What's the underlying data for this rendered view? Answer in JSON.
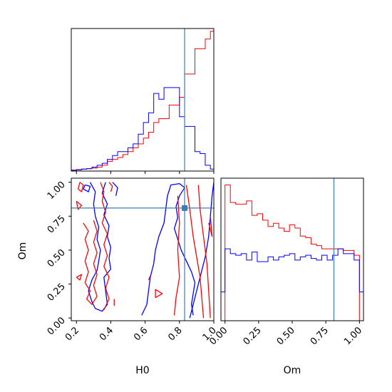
{
  "chart_data": [
    {
      "type": "histogram",
      "panel": "H0 marginal",
      "x_range": [
        0.17,
        1.0
      ],
      "show_y_ticks": false,
      "truth_x": 0.83,
      "series": [
        {
          "color": "#ff0000",
          "bin_edges": [
            0.17,
            0.2,
            0.23,
            0.26,
            0.29,
            0.32,
            0.35,
            0.38,
            0.41,
            0.44,
            0.47,
            0.5,
            0.53,
            0.56,
            0.59,
            0.62,
            0.65,
            0.68,
            0.71,
            0.74,
            0.77,
            0.8,
            0.83,
            0.86,
            0.89,
            0.92,
            0.95,
            0.98,
            1.0
          ],
          "heights": [
            0.005,
            0.008,
            0.01,
            0.012,
            0.015,
            0.02,
            0.03,
            0.05,
            0.06,
            0.07,
            0.085,
            0.1,
            0.12,
            0.14,
            0.17,
            0.2,
            0.25,
            0.27,
            0.27,
            0.34,
            0.34,
            0.38,
            0.5,
            0.5,
            0.63,
            0.63,
            0.68,
            0.72
          ]
        },
        {
          "color": "#0000ff",
          "bin_edges": [
            0.17,
            0.2,
            0.23,
            0.26,
            0.29,
            0.32,
            0.35,
            0.38,
            0.41,
            0.44,
            0.47,
            0.5,
            0.53,
            0.56,
            0.59,
            0.62,
            0.65,
            0.68,
            0.71,
            0.74,
            0.77,
            0.8,
            0.83,
            0.86,
            0.89,
            0.92,
            0.95,
            0.98,
            1.0
          ],
          "heights": [
            0.004,
            0.006,
            0.01,
            0.013,
            0.02,
            0.03,
            0.04,
            0.06,
            0.08,
            0.1,
            0.1,
            0.12,
            0.14,
            0.19,
            0.25,
            0.3,
            0.4,
            0.37,
            0.43,
            0.43,
            0.43,
            0.28,
            0.23,
            0.23,
            0.1,
            0.09,
            0.03,
            0.01
          ]
        }
      ]
    },
    {
      "type": "contour",
      "panel": "H0 vs Om",
      "xlabel": "H0",
      "ylabel": "Om",
      "xlim": [
        0.17,
        1.0
      ],
      "ylim": [
        -0.02,
        1.03
      ],
      "xticks": [
        "0.2",
        "0.4",
        "0.6",
        "0.8",
        "1.0"
      ],
      "yticks": [
        "0.00",
        "0.25",
        "0.50",
        "0.75",
        "1.00"
      ],
      "truth": {
        "x": 0.83,
        "y": 0.81
      },
      "series": [
        {
          "color": "#0000ff",
          "contours": [
            [
              [
                0.28,
                1.0
              ],
              [
                0.31,
                0.93
              ],
              [
                0.3,
                0.84
              ],
              [
                0.31,
                0.75
              ],
              [
                0.33,
                0.67
              ],
              [
                0.32,
                0.58
              ],
              [
                0.34,
                0.5
              ],
              [
                0.33,
                0.42
              ],
              [
                0.32,
                0.35
              ],
              [
                0.29,
                0.28
              ],
              [
                0.27,
                0.2
              ],
              [
                0.29,
                0.12
              ],
              [
                0.31,
                0.07
              ],
              [
                0.35,
                0.05
              ],
              [
                0.38,
                0.1
              ],
              [
                0.37,
                0.2
              ],
              [
                0.36,
                0.3
              ],
              [
                0.4,
                0.36
              ],
              [
                0.39,
                0.44
              ],
              [
                0.4,
                0.52
              ],
              [
                0.38,
                0.6
              ],
              [
                0.39,
                0.68
              ],
              [
                0.36,
                0.76
              ],
              [
                0.38,
                0.84
              ],
              [
                0.35,
                0.92
              ],
              [
                0.37,
                1.0
              ]
            ],
            [
              [
                0.25,
                0.98
              ],
              [
                0.28,
                0.97
              ],
              [
                0.27,
                0.93
              ],
              [
                0.24,
                0.95
              ],
              [
                0.25,
                0.98
              ]
            ],
            [
              [
                0.41,
                1.0
              ],
              [
                0.44,
                0.96
              ],
              [
                0.43,
                0.9
              ]
            ],
            [
              [
                0.58,
                0.02
              ],
              [
                0.61,
                0.1
              ],
              [
                0.62,
                0.2
              ],
              [
                0.63,
                0.3
              ],
              [
                0.65,
                0.4
              ],
              [
                0.66,
                0.5
              ],
              [
                0.68,
                0.6
              ],
              [
                0.71,
                0.7
              ],
              [
                0.72,
                0.8
              ],
              [
                0.73,
                0.9
              ],
              [
                0.75,
                0.98
              ],
              [
                0.8,
                0.99
              ],
              [
                0.83,
                0.96
              ],
              [
                0.8,
                0.9
              ],
              [
                0.78,
                0.82
              ],
              [
                0.79,
                0.74
              ],
              [
                0.77,
                0.66
              ],
              [
                0.79,
                0.58
              ],
              [
                0.81,
                0.5
              ],
              [
                0.84,
                0.42
              ],
              [
                0.87,
                0.34
              ],
              [
                0.89,
                0.26
              ],
              [
                0.88,
                0.18
              ],
              [
                0.87,
                0.1
              ],
              [
                0.88,
                0.02
              ]
            ],
            [
              [
                0.86,
                0.0
              ],
              [
                0.89,
                0.15
              ],
              [
                0.92,
                0.3
              ],
              [
                0.95,
                0.45
              ],
              [
                0.97,
                0.6
              ],
              [
                0.98,
                0.75
              ],
              [
                0.99,
                0.9
              ],
              [
                1.0,
                1.0
              ]
            ]
          ]
        },
        {
          "color": "#ff0000",
          "contours": [
            [
              [
                0.22,
                1.0
              ],
              [
                0.24,
                0.98
              ],
              [
                0.23,
                0.93
              ],
              [
                0.21,
                0.95
              ],
              [
                0.22,
                1.0
              ]
            ],
            [
              [
                0.2,
                0.86
              ],
              [
                0.23,
                0.83
              ],
              [
                0.21,
                0.8
              ],
              [
                0.2,
                0.86
              ]
            ],
            [
              [
                0.24,
                0.7
              ],
              [
                0.27,
                0.64
              ],
              [
                0.25,
                0.58
              ],
              [
                0.27,
                0.5
              ],
              [
                0.25,
                0.42
              ],
              [
                0.27,
                0.34
              ],
              [
                0.25,
                0.26
              ],
              [
                0.28,
                0.2
              ],
              [
                0.26,
                0.14
              ],
              [
                0.29,
                0.1
              ],
              [
                0.32,
                0.16
              ],
              [
                0.3,
                0.24
              ],
              [
                0.32,
                0.32
              ],
              [
                0.3,
                0.4
              ],
              [
                0.32,
                0.48
              ],
              [
                0.3,
                0.56
              ],
              [
                0.32,
                0.64
              ],
              [
                0.3,
                0.72
              ]
            ],
            [
              [
                0.34,
                1.0
              ],
              [
                0.36,
                0.93
              ],
              [
                0.35,
                0.86
              ],
              [
                0.37,
                0.78
              ],
              [
                0.35,
                0.7
              ],
              [
                0.38,
                0.62
              ],
              [
                0.36,
                0.54
              ],
              [
                0.38,
                0.46
              ],
              [
                0.36,
                0.38
              ],
              [
                0.39,
                0.3
              ],
              [
                0.37,
                0.22
              ],
              [
                0.39,
                0.14
              ],
              [
                0.36,
                0.06
              ]
            ],
            [
              [
                0.39,
                1.0
              ],
              [
                0.41,
                0.97
              ],
              [
                0.4,
                0.93
              ]
            ],
            [
              [
                0.2,
                0.3
              ],
              [
                0.23,
                0.32
              ],
              [
                0.22,
                0.28
              ],
              [
                0.2,
                0.3
              ]
            ],
            [
              [
                0.42,
                0.14
              ],
              [
                0.42,
                0.09
              ]
            ],
            [
              [
                0.79,
                0.9
              ],
              [
                0.8,
                0.7
              ],
              [
                0.79,
                0.5
              ],
              [
                0.8,
                0.3
              ],
              [
                0.78,
                0.15
              ],
              [
                0.77,
                0.02
              ]
            ],
            [
              [
                0.84,
                0.98
              ],
              [
                0.86,
                0.8
              ],
              [
                0.88,
                0.6
              ],
              [
                0.9,
                0.45
              ],
              [
                0.92,
                0.3
              ],
              [
                0.93,
                0.15
              ],
              [
                0.94,
                0.0
              ]
            ],
            [
              [
                0.91,
                0.98
              ],
              [
                0.92,
                0.8
              ],
              [
                0.94,
                0.6
              ],
              [
                0.96,
                0.4
              ],
              [
                0.97,
                0.2
              ],
              [
                0.98,
                0.0
              ]
            ],
            [
              [
                0.97,
                0.7
              ],
              [
                0.99,
                0.6
              ],
              [
                0.98,
                0.75
              ]
            ],
            [
              [
                0.66,
                0.15
              ],
              [
                0.7,
                0.18
              ],
              [
                0.66,
                0.21
              ],
              [
                0.66,
                0.15
              ]
            ],
            [
              [
                0.62,
                0.28
              ],
              [
                0.63,
                0.31
              ]
            ]
          ]
        }
      ]
    },
    {
      "type": "histogram",
      "panel": "Om marginal",
      "xlabel": "Om",
      "x_range": [
        -0.03,
        1.03
      ],
      "xticks": [
        "0.00",
        "0.25",
        "0.50",
        "0.75",
        "1.00"
      ],
      "show_y_ticks": false,
      "truth_x": 0.81,
      "series": [
        {
          "color": "#ff0000",
          "bin_edges": [
            -0.03,
            0.0,
            0.04,
            0.08,
            0.12,
            0.16,
            0.2,
            0.24,
            0.28,
            0.32,
            0.36,
            0.4,
            0.44,
            0.48,
            0.52,
            0.56,
            0.6,
            0.64,
            0.68,
            0.72,
            0.76,
            0.8,
            0.84,
            0.88,
            0.92,
            0.96,
            1.0,
            1.03
          ],
          "heights": [
            0.0,
            0.85,
            0.74,
            0.73,
            0.73,
            0.75,
            0.66,
            0.67,
            0.63,
            0.59,
            0.61,
            0.58,
            0.56,
            0.6,
            0.58,
            0.53,
            0.52,
            0.48,
            0.47,
            0.45,
            0.45,
            0.45,
            0.45,
            0.44,
            0.44,
            0.41,
            0.0
          ]
        },
        {
          "color": "#0000ff",
          "bin_edges": [
            -0.03,
            0.0,
            0.04,
            0.08,
            0.12,
            0.16,
            0.2,
            0.24,
            0.28,
            0.32,
            0.36,
            0.4,
            0.44,
            0.48,
            0.52,
            0.56,
            0.6,
            0.64,
            0.68,
            0.72,
            0.76,
            0.8,
            0.84,
            0.88,
            0.92,
            0.96,
            1.0,
            1.03
          ],
          "heights": [
            0.18,
            0.45,
            0.42,
            0.41,
            0.42,
            0.38,
            0.43,
            0.37,
            0.37,
            0.4,
            0.38,
            0.4,
            0.41,
            0.42,
            0.38,
            0.4,
            0.41,
            0.39,
            0.38,
            0.41,
            0.38,
            0.41,
            0.45,
            0.42,
            0.42,
            0.38,
            0.18
          ]
        }
      ]
    }
  ],
  "styles": {
    "truth_color": "#3a7db3",
    "red": "#ff0000",
    "blue": "#0000ff"
  }
}
